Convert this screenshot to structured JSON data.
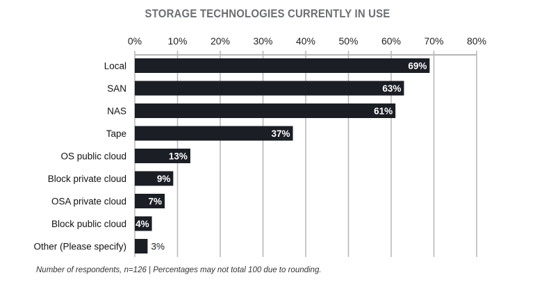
{
  "chart_data": {
    "type": "bar",
    "orientation": "horizontal",
    "title": "STORAGE TECHNOLOGIES CURRENTLY IN USE",
    "categories": [
      "Local",
      "SAN",
      "NAS",
      "Tape",
      "OS public cloud",
      "Block private cloud",
      "OSA private cloud",
      "Block public cloud",
      "Other (Please specify)"
    ],
    "values": [
      69,
      63,
      61,
      37,
      13,
      9,
      7,
      4,
      3
    ],
    "value_labels": [
      "69%",
      "63%",
      "61%",
      "37%",
      "13%",
      "9%",
      "7%",
      "4%",
      "3%"
    ],
    "xticks": [
      "0%",
      "10%",
      "20%",
      "30%",
      "40%",
      "50%",
      "60%",
      "70%",
      "80%"
    ],
    "xlim": [
      0,
      80
    ],
    "xlabel": "",
    "ylabel": "",
    "grid": true,
    "bar_color": "#1b1e25",
    "grid_color": "#b5b5b5"
  },
  "footnote": "Number of respondents, n=126 | Percentages may not total 100 due to rounding."
}
